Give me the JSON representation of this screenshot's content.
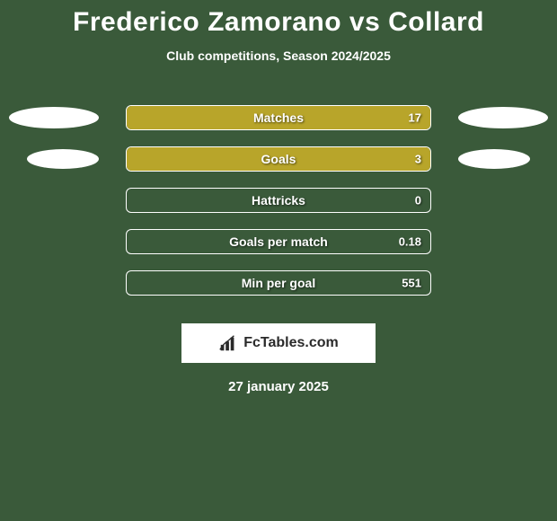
{
  "title": "Frederico Zamorano vs Collard",
  "subtitle": "Club competitions, Season 2024/2025",
  "background_color": "#3a5a3a",
  "bar_color": "#b8a52a",
  "border_color": "#ffffff",
  "text_color": "#ffffff",
  "stats": [
    {
      "label": "Matches",
      "value": "17",
      "fill_pct": 100,
      "left_ellipse": "large",
      "right_ellipse": "large"
    },
    {
      "label": "Goals",
      "value": "3",
      "fill_pct": 100,
      "left_ellipse": "small",
      "right_ellipse": "small"
    },
    {
      "label": "Hattricks",
      "value": "0",
      "fill_pct": 0,
      "left_ellipse": null,
      "right_ellipse": null
    },
    {
      "label": "Goals per match",
      "value": "0.18",
      "fill_pct": 0,
      "left_ellipse": null,
      "right_ellipse": null
    },
    {
      "label": "Min per goal",
      "value": "551",
      "fill_pct": 0,
      "left_ellipse": null,
      "right_ellipse": null
    }
  ],
  "logo": {
    "text": "FcTables.com",
    "icon": "bar-chart-icon"
  },
  "date": "27 january 2025",
  "fonts": {
    "title_size": 30,
    "subtitle_size": 14,
    "label_size": 14,
    "value_size": 13,
    "date_size": 15
  }
}
